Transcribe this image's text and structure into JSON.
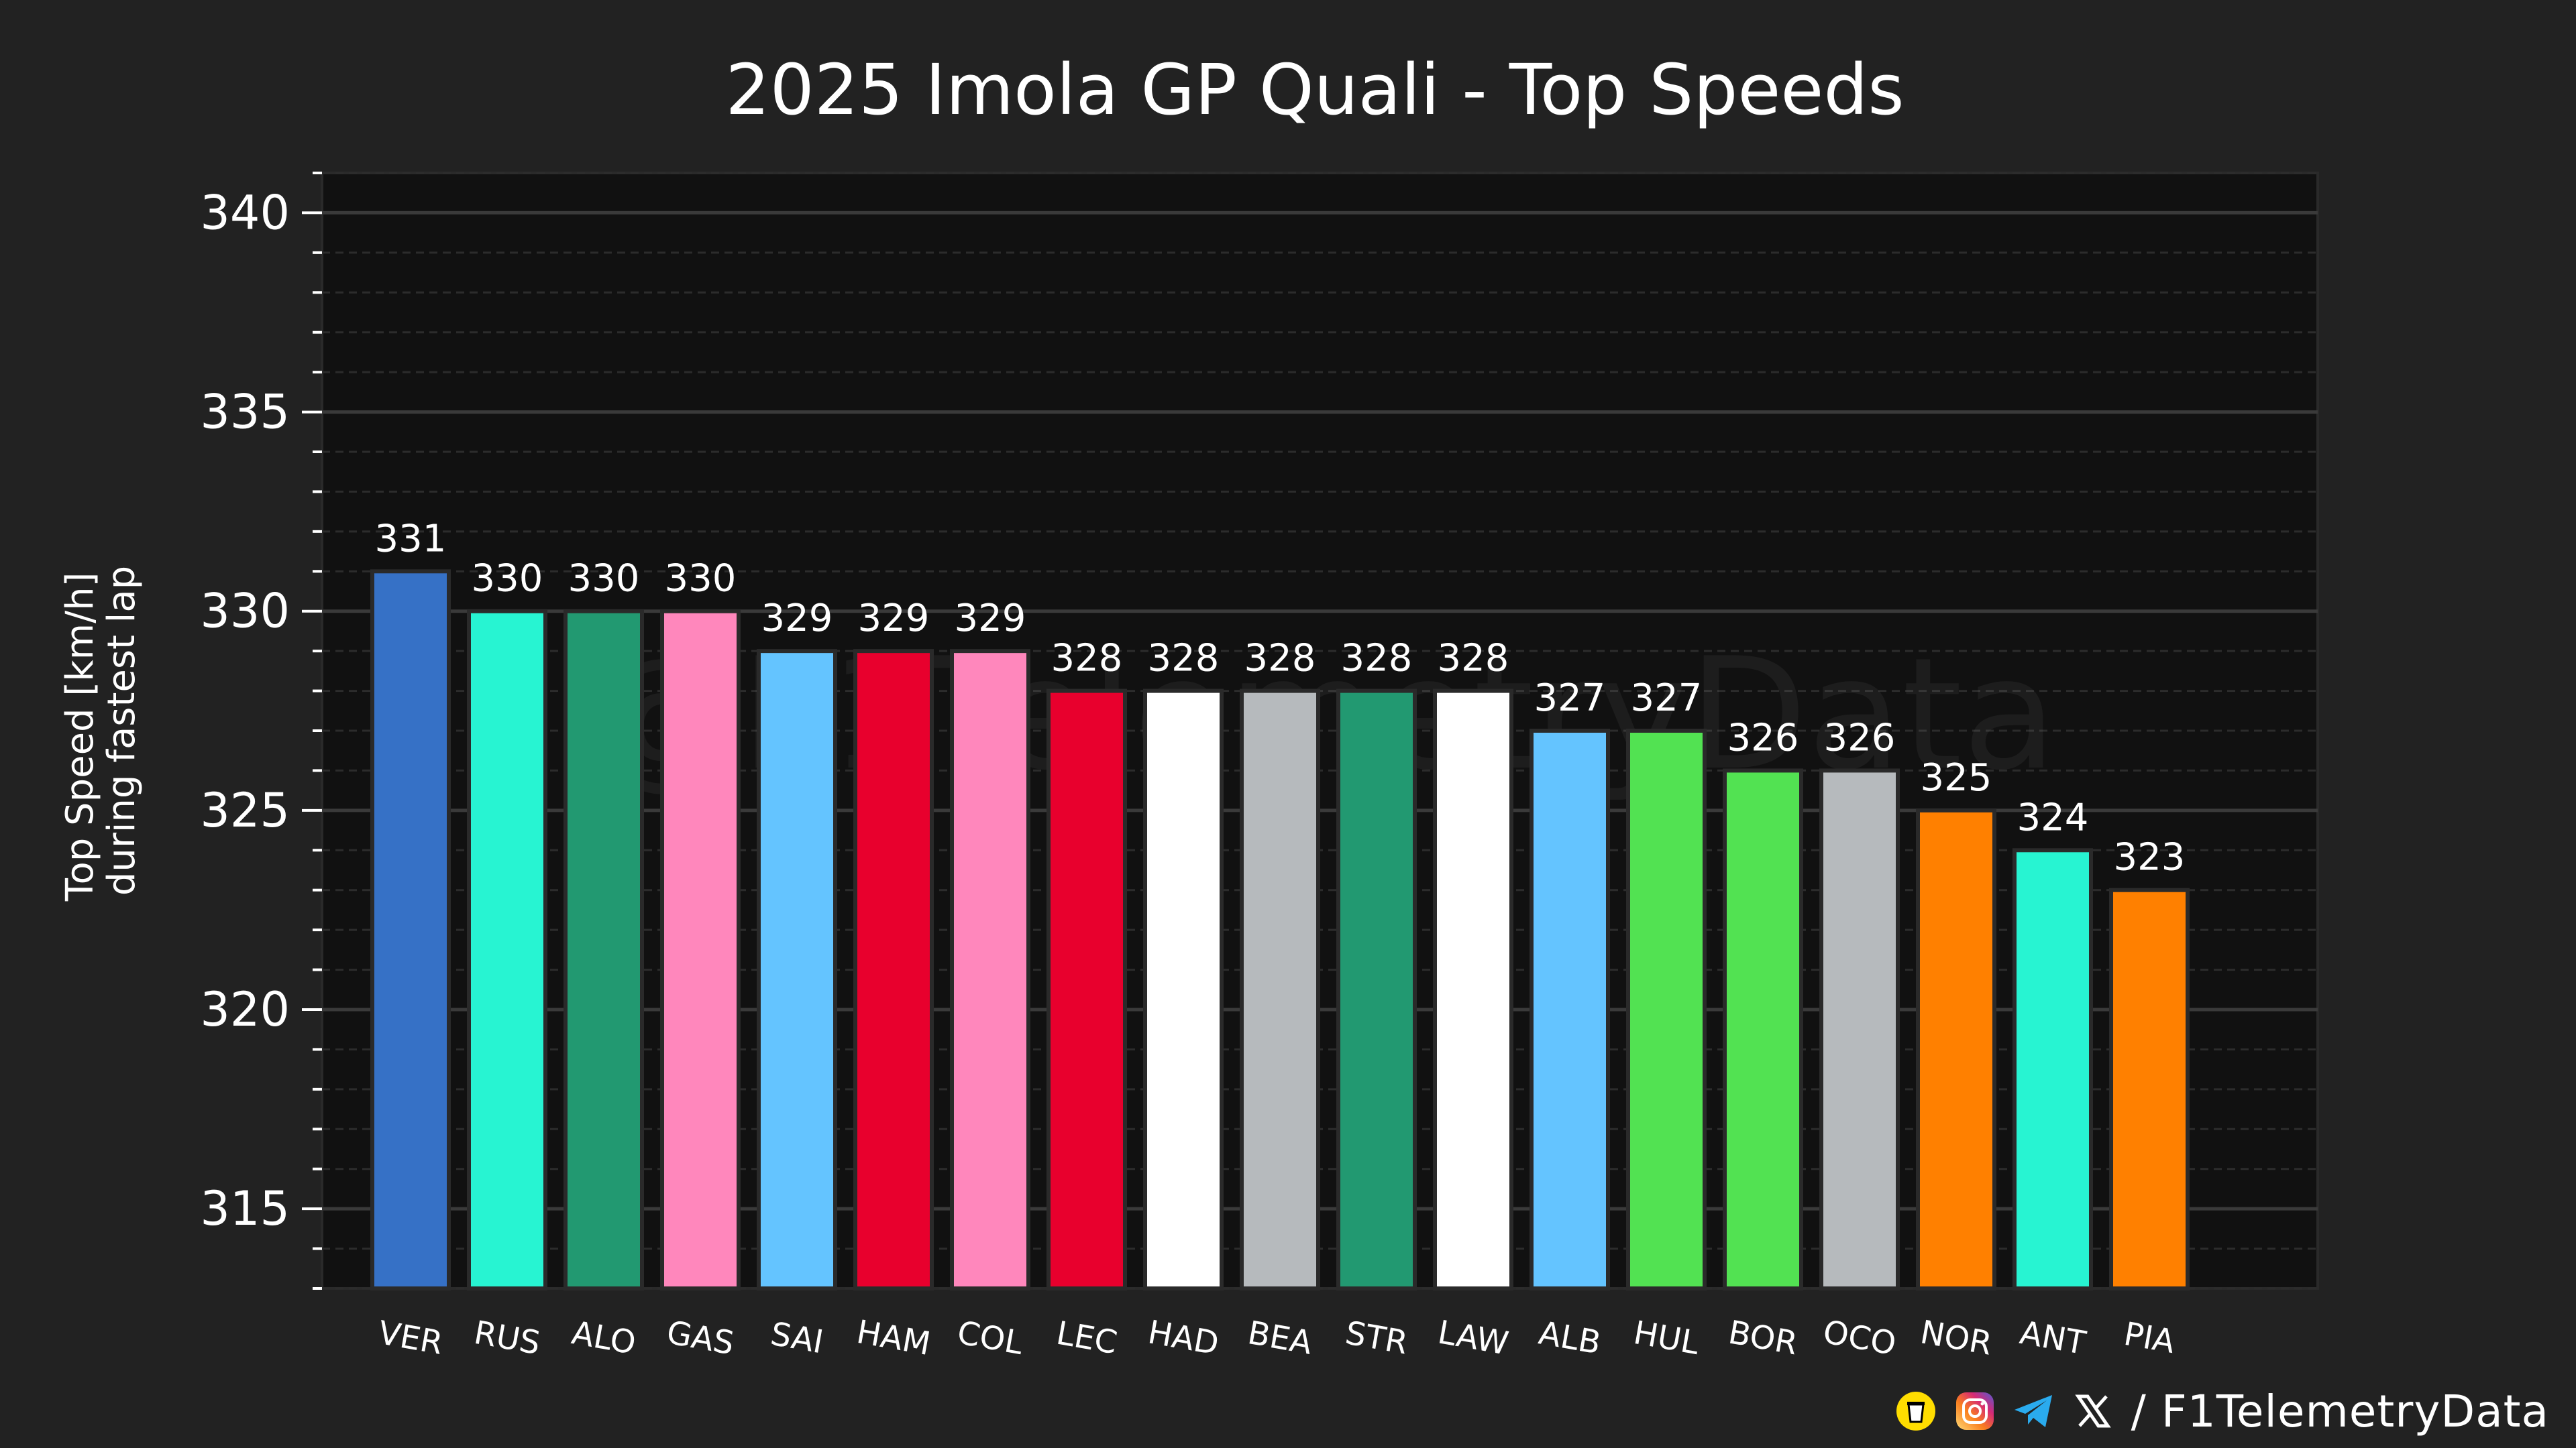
{
  "chart_data": {
    "type": "bar",
    "title": "2025 Imola GP Quali - Top Speeds",
    "xlabel": "",
    "ylabel_lines": [
      "Top Speed [km/h]",
      "during fastest lap"
    ],
    "ylim": [
      313,
      341
    ],
    "yticks": [
      315,
      320,
      325,
      330,
      335,
      340
    ],
    "grid": true,
    "categories": [
      "VER",
      "RUS",
      "ALO",
      "GAS",
      "SAI",
      "HAM",
      "COL",
      "LEC",
      "HAD",
      "BEA",
      "STR",
      "LAW",
      "ALB",
      "HUL",
      "BOR",
      "OCO",
      "NOR",
      "ANT",
      "PIA"
    ],
    "values": [
      331,
      330,
      330,
      330,
      329,
      329,
      329,
      328,
      328,
      328,
      328,
      328,
      327,
      327,
      326,
      326,
      325,
      324,
      323
    ],
    "colors": [
      "#3671C6",
      "#27F4D2",
      "#229971",
      "#FF87BC",
      "#64C4FF",
      "#E8002D",
      "#FF87BC",
      "#E8002D",
      "#FFFFFF",
      "#B6BABD",
      "#229971",
      "#FFFFFF",
      "#64C4FF",
      "#52E252",
      "#52E252",
      "#B6BABD",
      "#FF8000",
      "#27F4D2",
      "#FF8000"
    ],
    "watermark": "@F1TelemetryData"
  },
  "footer": {
    "handle": "/ F1TelemetryData",
    "icons": [
      "coffee-icon",
      "instagram-icon",
      "telegram-icon",
      "x-icon"
    ]
  },
  "theme": {
    "background": "#222222",
    "plot_background": "#111111",
    "text": "#ffffff"
  }
}
